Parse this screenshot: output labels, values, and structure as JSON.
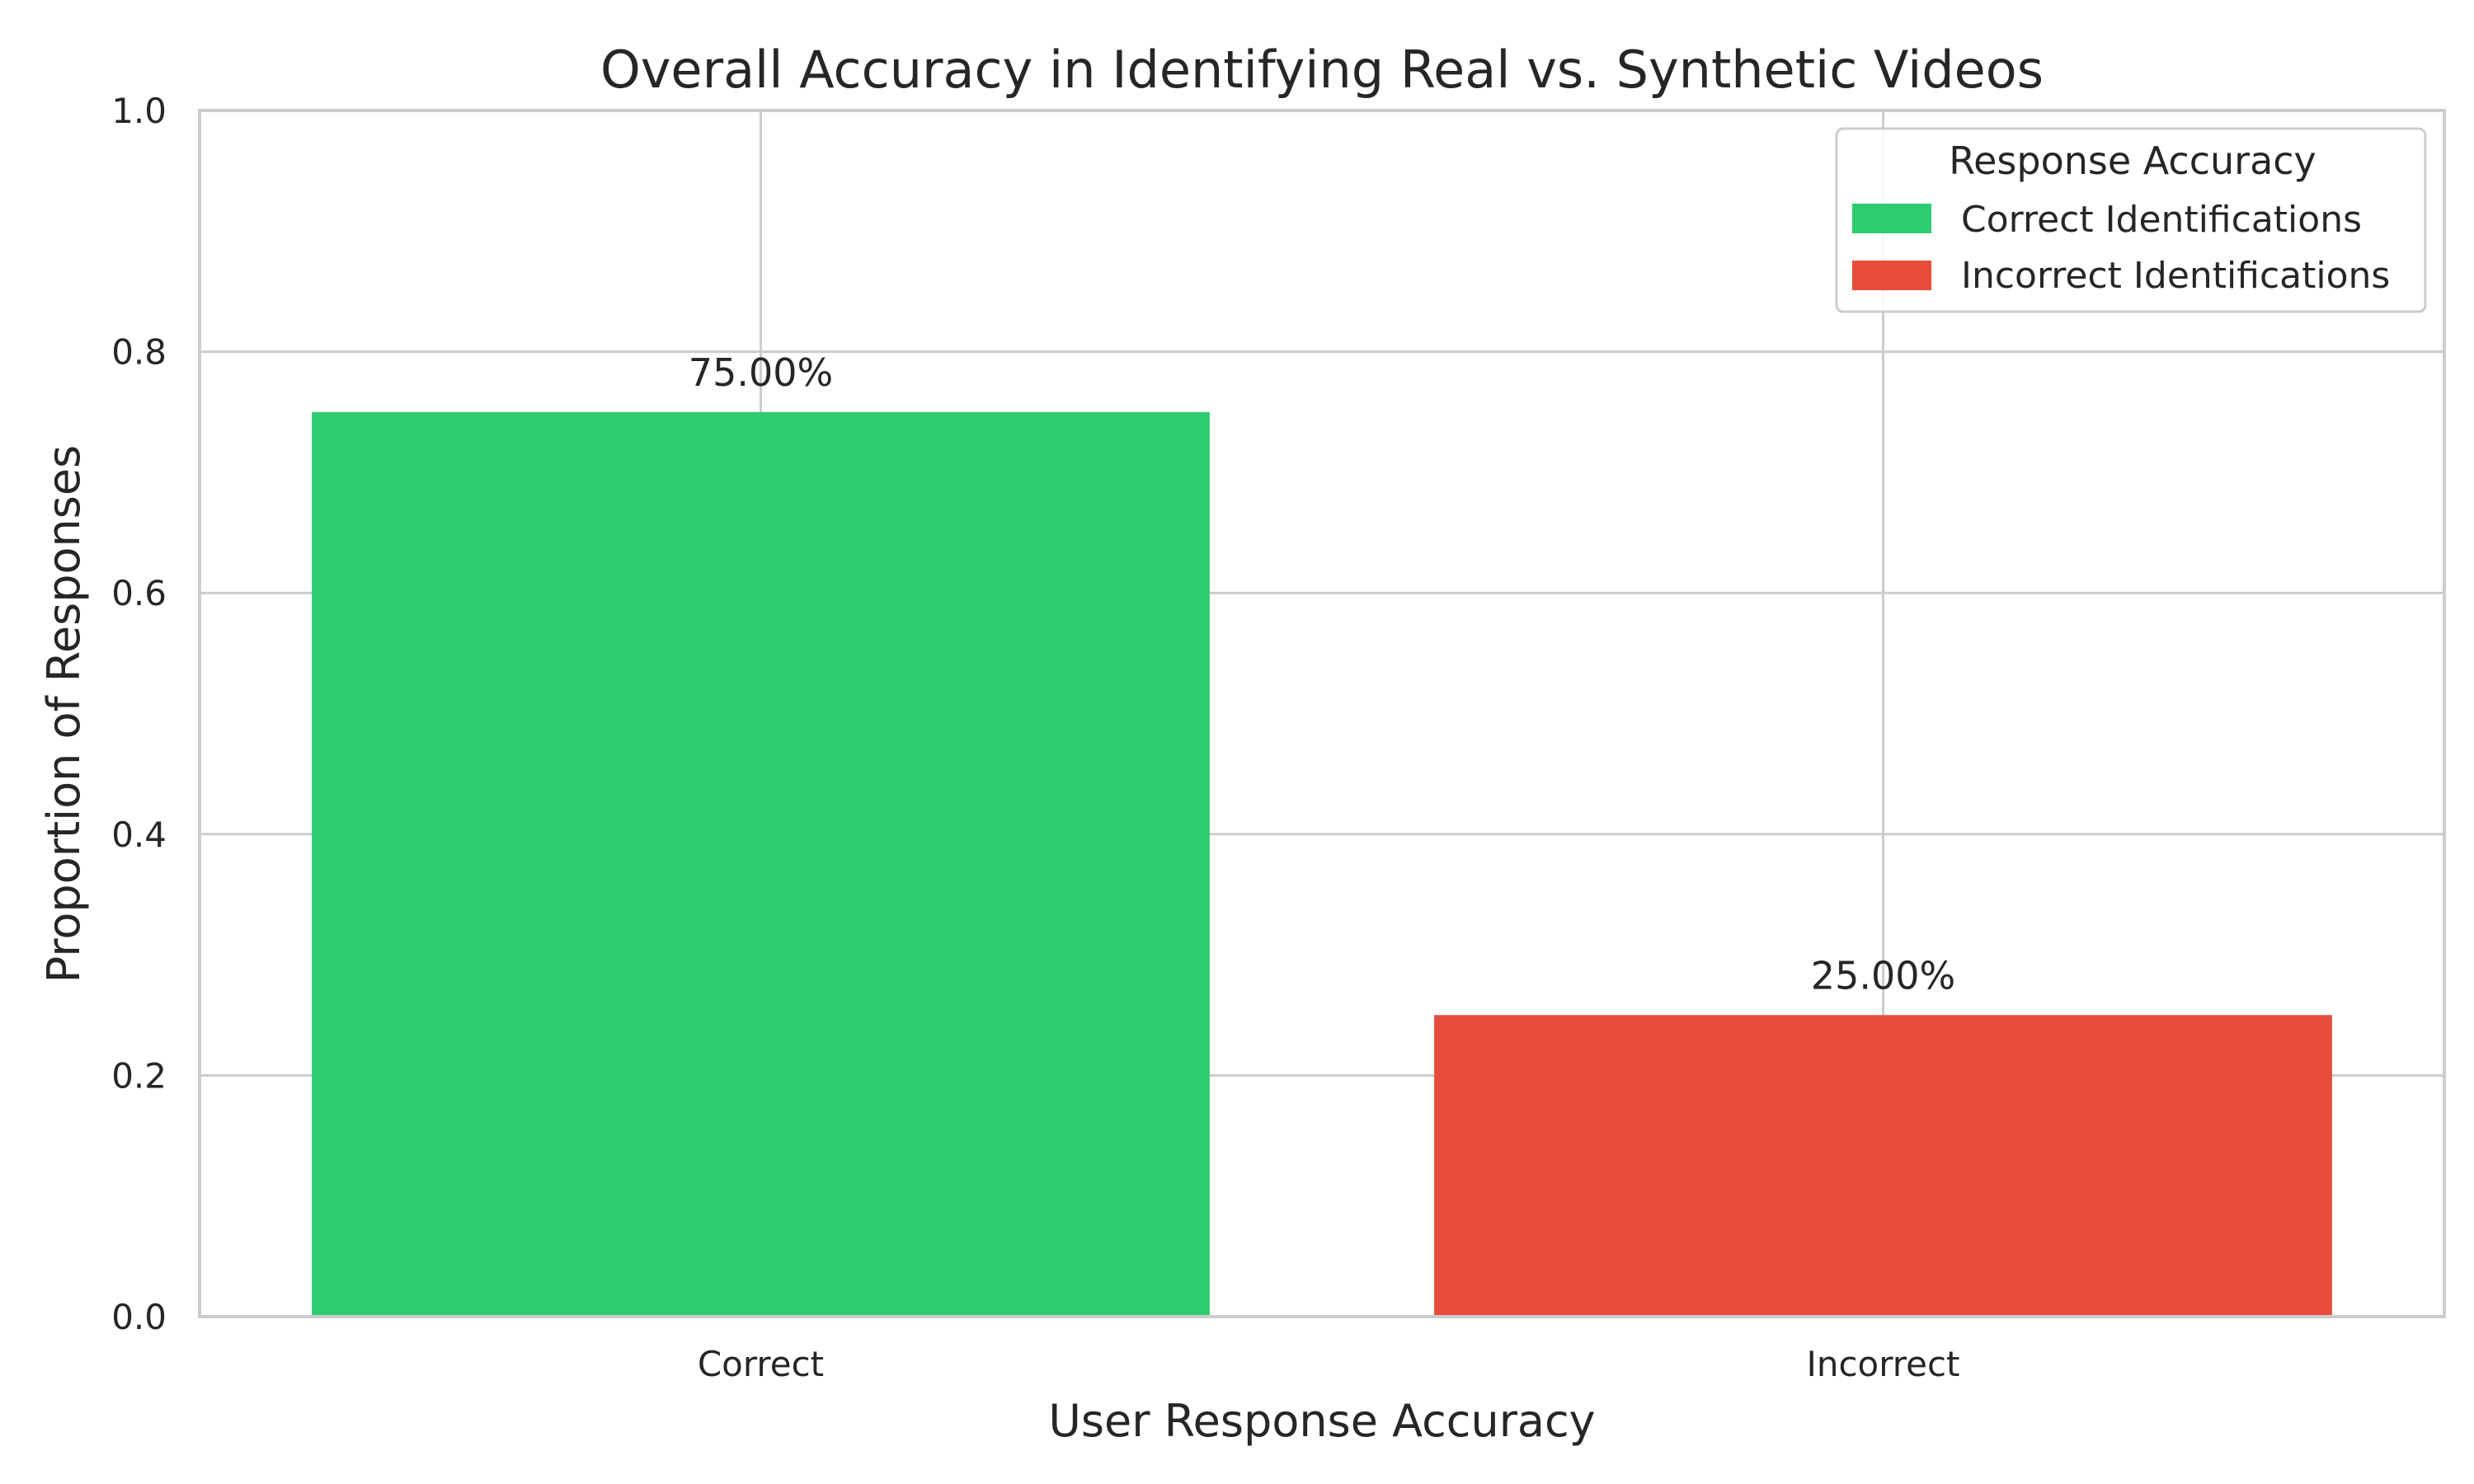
{
  "chart_data": {
    "type": "bar",
    "title": "Overall Accuracy in Identifying Real vs. Synthetic Videos",
    "xlabel": "User Response Accuracy",
    "ylabel": "Proportion of Responses",
    "categories": [
      "Correct",
      "Incorrect"
    ],
    "values": [
      0.75,
      0.25
    ],
    "data_labels": [
      "75.00%",
      "25.00%"
    ],
    "colors": [
      "#2ecc71",
      "#e74c3c"
    ],
    "ylim": [
      0,
      1.0
    ],
    "y_ticks": [
      {
        "value": 0.0,
        "label": "0.0"
      },
      {
        "value": 0.2,
        "label": "0.2"
      },
      {
        "value": 0.4,
        "label": "0.4"
      },
      {
        "value": 0.6,
        "label": "0.6"
      },
      {
        "value": 0.8,
        "label": "0.8"
      },
      {
        "value": 1.0,
        "label": "1.0"
      }
    ],
    "grid": true,
    "legend": {
      "title": "Response Accuracy",
      "placement": "top-right",
      "entries": [
        {
          "label": "Correct Identifications",
          "color": "#2ecc71"
        },
        {
          "label": "Incorrect Identifications",
          "color": "#e74c3c"
        }
      ]
    }
  }
}
